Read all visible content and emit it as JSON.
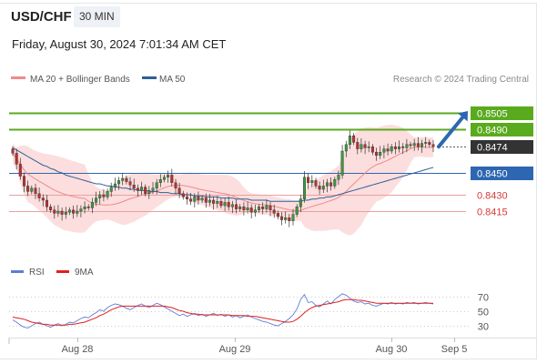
{
  "header": {
    "symbol": "USD/CHF",
    "timeframe": "30 MIN"
  },
  "datetime": "Friday, August 30, 2024 7:01:34 AM CET",
  "legend": {
    "ma20_bb": {
      "label": "MA 20 + Bollinger Bands",
      "color": "#f08a8a"
    },
    "ma50": {
      "label": "MA 50",
      "color": "#2f5f9a"
    }
  },
  "credit": "Research © 2024 Trading Central",
  "colors": {
    "resistance": "#5aaa1e",
    "current": "#333333",
    "pivot": "#2e67b1",
    "support": "#d83a3a",
    "band_fill": "#fcdede",
    "bull_candle": "#3a9a3a",
    "bear_candle": "#c02e2e",
    "arrow": "#2e67b1",
    "rsi": "#5b7fd6",
    "rsi_ma": "#e02020"
  },
  "chart_data": [
    {
      "type": "candlestick",
      "title": "USD/CHF",
      "ylim": [
        0.8385,
        0.8525
      ],
      "x_ticks": [
        "Aug 28",
        "Aug 29",
        "Aug 30",
        "Sep 5"
      ],
      "levels": [
        {
          "value": 0.8505,
          "label": "0.8505",
          "kind": "resistance",
          "style": "solid"
        },
        {
          "value": 0.849,
          "label": "0.8490",
          "kind": "resistance",
          "style": "solid"
        },
        {
          "value": 0.8474,
          "label": "0.8474",
          "kind": "current",
          "style": "dotted"
        },
        {
          "value": 0.845,
          "label": "0.8450",
          "kind": "pivot",
          "style": "solid"
        },
        {
          "value": 0.843,
          "label": "0.8430",
          "kind": "support",
          "style": "solid"
        },
        {
          "value": 0.8415,
          "label": "0.8415",
          "kind": "support",
          "style": "solid"
        }
      ],
      "close": [
        0.8468,
        0.8458,
        0.8447,
        0.8438,
        0.8433,
        0.8436,
        0.8431,
        0.8427,
        0.8425,
        0.8419,
        0.8416,
        0.8413,
        0.8415,
        0.8412,
        0.8414,
        0.8416,
        0.8413,
        0.8415,
        0.8417,
        0.8419,
        0.8418,
        0.8423,
        0.8427,
        0.843,
        0.8428,
        0.8433,
        0.8437,
        0.844,
        0.8443,
        0.8445,
        0.8442,
        0.8439,
        0.8436,
        0.8434,
        0.8437,
        0.8431,
        0.8434,
        0.8436,
        0.8441,
        0.8444,
        0.8446,
        0.8448,
        0.8441,
        0.8436,
        0.8431,
        0.8428,
        0.8426,
        0.8424,
        0.8428,
        0.8425,
        0.8427,
        0.8423,
        0.8425,
        0.8422,
        0.8424,
        0.842,
        0.8423,
        0.8419,
        0.8421,
        0.8417,
        0.8419,
        0.8416,
        0.8418,
        0.8414,
        0.8416,
        0.8419,
        0.8417,
        0.842,
        0.8416,
        0.8413,
        0.841,
        0.8407,
        0.8409,
        0.8406,
        0.8412,
        0.8419,
        0.8426,
        0.8446,
        0.8441,
        0.8443,
        0.8438,
        0.8435,
        0.8438,
        0.8441,
        0.8438,
        0.8444,
        0.8448,
        0.847,
        0.8476,
        0.8484,
        0.8478,
        0.8472,
        0.8476,
        0.8473,
        0.8474,
        0.8469,
        0.8466,
        0.8469,
        0.8472,
        0.847,
        0.8474,
        0.8472,
        0.8474,
        0.8473,
        0.8476,
        0.8475,
        0.8477,
        0.8474,
        0.8477,
        0.8478,
        0.8476,
        0.8474
      ],
      "ma50": [
        0.8473,
        0.8471,
        0.8469,
        0.8467,
        0.8465,
        0.8463,
        0.8461,
        0.8459,
        0.8457,
        0.8456,
        0.8454,
        0.8453,
        0.8451,
        0.845,
        0.8448,
        0.8447,
        0.8446,
        0.8445,
        0.8444,
        0.8443,
        0.8442,
        0.8441,
        0.844,
        0.844,
        0.8439,
        0.8438,
        0.8438,
        0.8437,
        0.8437,
        0.8436,
        0.8436,
        0.8435,
        0.8435,
        0.8434,
        0.8434,
        0.8434,
        0.8433,
        0.8433,
        0.8433,
        0.8432,
        0.8432,
        0.8432,
        0.8431,
        0.8431,
        0.8431,
        0.843,
        0.843,
        0.843,
        0.8429,
        0.8429,
        0.8429,
        0.8428,
        0.8428,
        0.8428,
        0.8428,
        0.8427,
        0.8427,
        0.8427,
        0.8427,
        0.8426,
        0.8426,
        0.8426,
        0.8426,
        0.8425,
        0.8425,
        0.8425,
        0.8425,
        0.8425,
        0.8424,
        0.8424,
        0.8424,
        0.8424,
        0.8424,
        0.8424,
        0.8424,
        0.8424,
        0.8424,
        0.8425,
        0.8425,
        0.8426,
        0.8426,
        0.8427,
        0.8427,
        0.8428,
        0.8428,
        0.8429,
        0.843,
        0.8431,
        0.8432,
        0.8433,
        0.8434,
        0.8435,
        0.8436,
        0.8437,
        0.8438,
        0.8439,
        0.844,
        0.8441,
        0.8442,
        0.8443,
        0.8444,
        0.8445,
        0.8446,
        0.8447,
        0.8448,
        0.8449,
        0.845,
        0.8451,
        0.8452,
        0.8453,
        0.8454,
        0.8455
      ],
      "projection": {
        "from": 0.8474,
        "to": 0.8505
      }
    },
    {
      "type": "line",
      "title": "RSI",
      "ylim": [
        20,
        80
      ],
      "y_ticks": [
        70,
        50,
        30
      ],
      "series": [
        {
          "name": "RSI",
          "values": [
            38,
            35,
            31,
            28,
            27,
            30,
            33,
            35,
            32,
            30,
            28,
            31,
            33,
            30,
            32,
            35,
            34,
            37,
            40,
            42,
            41,
            45,
            48,
            52,
            50,
            55,
            58,
            60,
            59,
            57,
            54,
            52,
            55,
            58,
            60,
            57,
            55,
            58,
            61,
            59,
            56,
            53,
            50,
            47,
            44,
            46,
            43,
            45,
            47,
            44,
            46,
            43,
            45,
            47,
            44,
            46,
            43,
            45,
            42,
            44,
            41,
            43,
            45,
            42,
            40,
            38,
            36,
            35,
            33,
            31,
            30,
            33,
            36,
            40,
            45,
            53,
            66,
            73,
            62,
            63,
            58,
            56,
            60,
            64,
            60,
            66,
            70,
            74,
            72,
            68,
            64,
            62,
            63,
            60,
            61,
            58,
            57,
            59,
            61,
            60,
            62,
            60,
            61,
            60,
            62,
            61,
            62,
            60,
            61,
            62,
            61,
            60
          ]
        },
        {
          "name": "9MA",
          "values": [
            42,
            41,
            40,
            39,
            37,
            35,
            34,
            33,
            32,
            32,
            31,
            31,
            31,
            31,
            31,
            32,
            32,
            33,
            34,
            35,
            37,
            39,
            41,
            44,
            46,
            49,
            52,
            54,
            56,
            57,
            57,
            57,
            57,
            57,
            57,
            57,
            57,
            57,
            57,
            57,
            57,
            56,
            55,
            53,
            51,
            50,
            48,
            47,
            46,
            46,
            45,
            45,
            45,
            45,
            45,
            45,
            45,
            45,
            44,
            44,
            44,
            44,
            43,
            43,
            43,
            42,
            41,
            40,
            39,
            38,
            37,
            36,
            35,
            35,
            36,
            39,
            43,
            48,
            52,
            55,
            57,
            58,
            59,
            60,
            61,
            62,
            63,
            65,
            66,
            66,
            66,
            65,
            65,
            64,
            63,
            62,
            61,
            61,
            61,
            61,
            61,
            61,
            61,
            61,
            61,
            61,
            61,
            61,
            61,
            61,
            61,
            61
          ]
        }
      ]
    }
  ]
}
